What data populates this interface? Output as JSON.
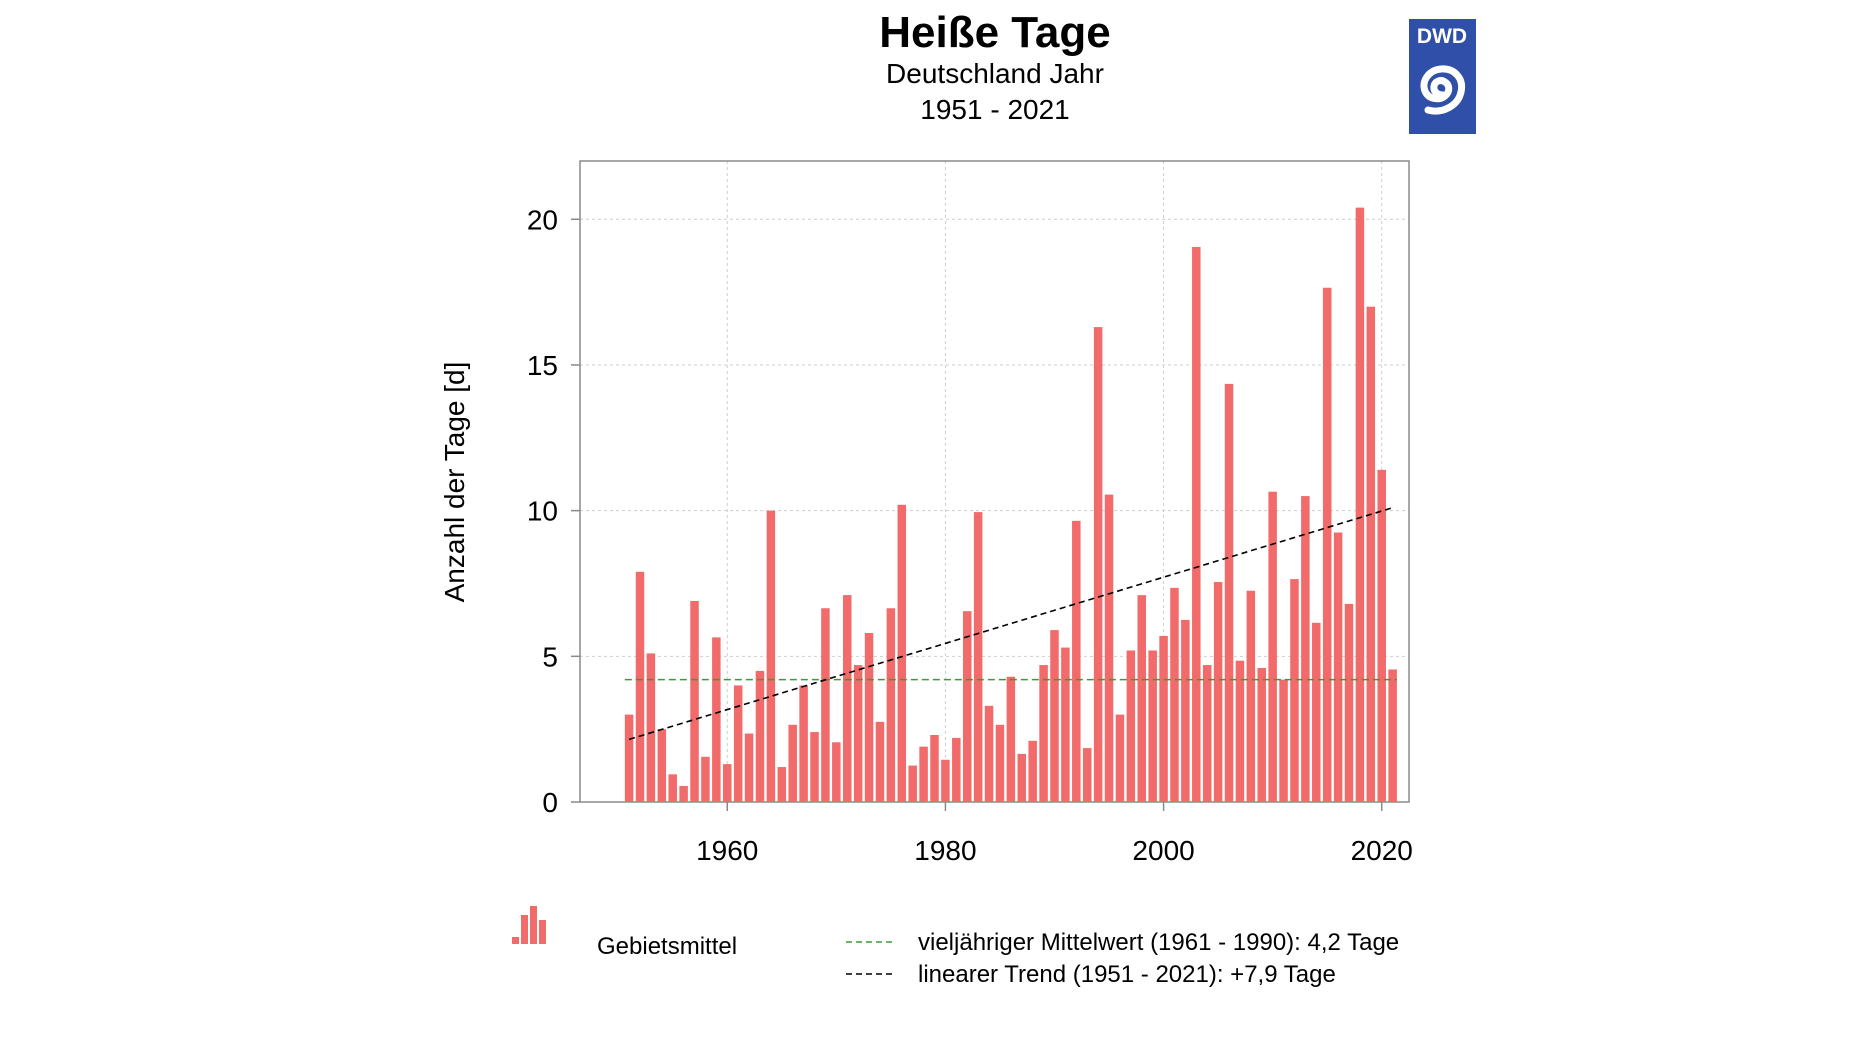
{
  "chart_data": {
    "type": "bar",
    "title": "Heiße Tage",
    "subtitle": "Deutschland Jahr",
    "period": "1951 - 2021",
    "ylabel": "Anzahl der Tage [d]",
    "xlabel": "",
    "xlim": [
      1946.5,
      2022.5
    ],
    "ylim": [
      0,
      22
    ],
    "x_ticks": [
      1960,
      1980,
      2000,
      2020
    ],
    "y_ticks": [
      0,
      5,
      10,
      15,
      20
    ],
    "grid": true,
    "logo_text": "DWD",
    "colors": {
      "bar": "#f26b6b",
      "mean_line": "#3c9a3c",
      "trend_line": "#000000",
      "logo": "#2f4fa8"
    },
    "series": [
      {
        "name": "Gebietsmittel",
        "x": [
          1951,
          1952,
          1953,
          1954,
          1955,
          1956,
          1957,
          1958,
          1959,
          1960,
          1961,
          1962,
          1963,
          1964,
          1965,
          1966,
          1967,
          1968,
          1969,
          1970,
          1971,
          1972,
          1973,
          1974,
          1975,
          1976,
          1977,
          1978,
          1979,
          1980,
          1981,
          1982,
          1983,
          1984,
          1985,
          1986,
          1987,
          1988,
          1989,
          1990,
          1991,
          1992,
          1993,
          1994,
          1995,
          1996,
          1997,
          1998,
          1999,
          2000,
          2001,
          2002,
          2003,
          2004,
          2005,
          2006,
          2007,
          2008,
          2009,
          2010,
          2011,
          2012,
          2013,
          2014,
          2015,
          2016,
          2017,
          2018,
          2019,
          2020,
          2021
        ],
        "values": [
          3.0,
          7.9,
          5.1,
          2.5,
          0.95,
          0.55,
          6.9,
          1.55,
          5.65,
          1.3,
          4.0,
          2.35,
          4.5,
          10.0,
          1.2,
          2.65,
          4.0,
          2.4,
          6.65,
          2.05,
          7.1,
          4.7,
          5.8,
          2.75,
          6.65,
          10.2,
          1.25,
          1.9,
          2.3,
          1.45,
          2.2,
          6.55,
          9.95,
          3.3,
          2.65,
          4.3,
          1.65,
          2.1,
          4.7,
          5.9,
          5.3,
          9.65,
          1.85,
          16.3,
          10.55,
          3.0,
          5.2,
          7.1,
          5.2,
          5.7,
          7.35,
          6.25,
          19.05,
          4.7,
          7.55,
          14.35,
          4.85,
          7.25,
          4.6,
          10.65,
          4.2,
          7.65,
          10.5,
          6.15,
          17.65,
          9.25,
          6.8,
          20.4,
          17.0,
          11.4,
          4.55
        ]
      }
    ],
    "reference_lines": [
      {
        "name": "vieljähriger Mittelwert (1961 - 1990): 4,2 Tage",
        "value": 4.2,
        "style": "dashed",
        "color": "#3c9a3c"
      }
    ],
    "trend_line": {
      "name": "linearer Trend (1951 - 2021): +7,9 Tage",
      "x": [
        1951,
        2021
      ],
      "y": [
        2.15,
        10.1
      ],
      "style": "dashed",
      "color": "#000000"
    },
    "legend": {
      "position": "bottom",
      "bars_label": "Gebietsmittel",
      "mean_label": "vieljähriger Mittelwert (1961 - 1990): 4,2 Tage",
      "trend_label": "linearer Trend (1951 - 2021): +7,9 Tage"
    }
  }
}
